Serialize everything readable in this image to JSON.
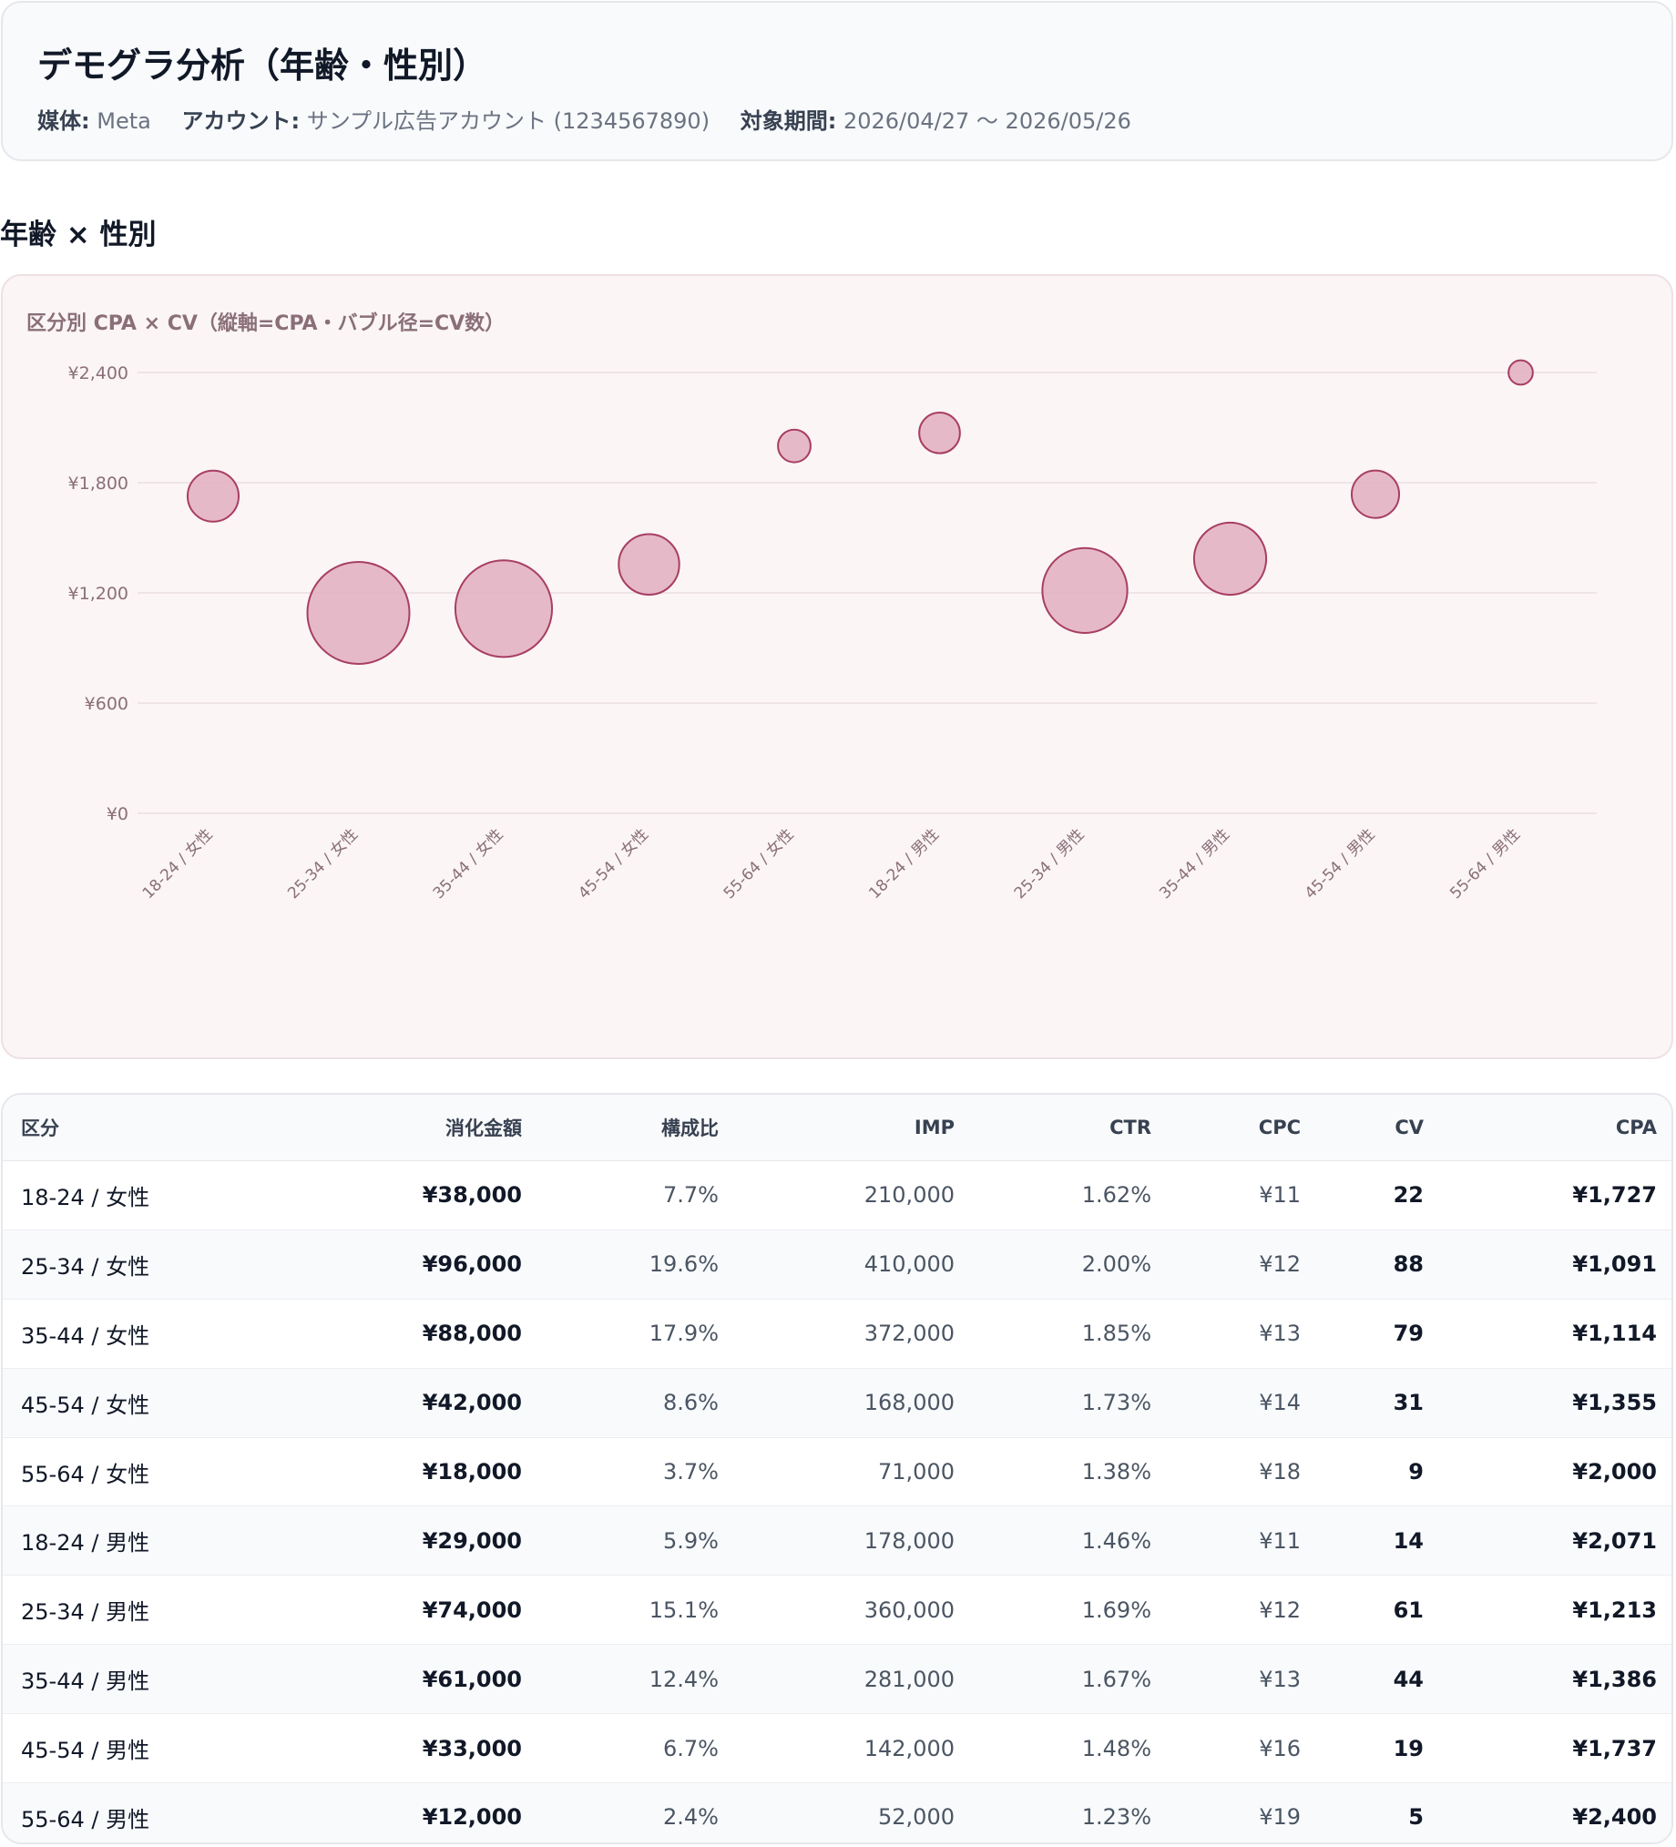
{
  "header": {
    "title": "デモグラ分析（年齢・性別）",
    "meta": [
      {
        "label": "媒体:",
        "value": "Meta"
      },
      {
        "label": "アカウント:",
        "value": "サンプル広告アカウント (1234567890)"
      },
      {
        "label": "対象期間:",
        "value": "2026/04/27 〜 2026/05/26"
      }
    ]
  },
  "section": {
    "title": "年齢 × 性別"
  },
  "chart_data": {
    "type": "scatter",
    "title": "区分別 CPA × CV（縦軸=CPA・バブル径=CV数）",
    "xlabel": "",
    "ylabel": "",
    "ylim": [
      0,
      2400
    ],
    "yticks": [
      "¥0",
      "¥600",
      "¥1,200",
      "¥1,800",
      "¥2,400"
    ],
    "ytick_values": [
      0,
      600,
      1200,
      1800,
      2400
    ],
    "grid": true,
    "categories": [
      "18-24 / 女性",
      "25-34 / 女性",
      "35-44 / 女性",
      "45-54 / 女性",
      "55-64 / 女性",
      "18-24 / 男性",
      "25-34 / 男性",
      "35-44 / 男性",
      "45-54 / 男性",
      "55-64 / 男性"
    ],
    "values": [
      1727,
      1091,
      1114,
      1355,
      2000,
      2071,
      1213,
      1386,
      1737,
      2400
    ],
    "bubble_size": [
      22,
      88,
      79,
      31,
      9,
      14,
      61,
      44,
      19,
      5
    ],
    "colors": {
      "fill": "#e2aec0",
      "stroke": "#a83e63"
    }
  },
  "table": {
    "headers": [
      "区分",
      "消化金額",
      "構成比",
      "IMP",
      "CTR",
      "CPC",
      "CV",
      "CPA"
    ],
    "rows": [
      {
        "segment": "18-24 / 女性",
        "spend": "¥38,000",
        "share": "7.7%",
        "imp": "210,000",
        "ctr": "1.62%",
        "cpc": "¥11",
        "cv": "22",
        "cpa": "¥1,727"
      },
      {
        "segment": "25-34 / 女性",
        "spend": "¥96,000",
        "share": "19.6%",
        "imp": "410,000",
        "ctr": "2.00%",
        "cpc": "¥12",
        "cv": "88",
        "cpa": "¥1,091"
      },
      {
        "segment": "35-44 / 女性",
        "spend": "¥88,000",
        "share": "17.9%",
        "imp": "372,000",
        "ctr": "1.85%",
        "cpc": "¥13",
        "cv": "79",
        "cpa": "¥1,114"
      },
      {
        "segment": "45-54 / 女性",
        "spend": "¥42,000",
        "share": "8.6%",
        "imp": "168,000",
        "ctr": "1.73%",
        "cpc": "¥14",
        "cv": "31",
        "cpa": "¥1,355"
      },
      {
        "segment": "55-64 / 女性",
        "spend": "¥18,000",
        "share": "3.7%",
        "imp": "71,000",
        "ctr": "1.38%",
        "cpc": "¥18",
        "cv": "9",
        "cpa": "¥2,000"
      },
      {
        "segment": "18-24 / 男性",
        "spend": "¥29,000",
        "share": "5.9%",
        "imp": "178,000",
        "ctr": "1.46%",
        "cpc": "¥11",
        "cv": "14",
        "cpa": "¥2,071"
      },
      {
        "segment": "25-34 / 男性",
        "spend": "¥74,000",
        "share": "15.1%",
        "imp": "360,000",
        "ctr": "1.69%",
        "cpc": "¥12",
        "cv": "61",
        "cpa": "¥1,213"
      },
      {
        "segment": "35-44 / 男性",
        "spend": "¥61,000",
        "share": "12.4%",
        "imp": "281,000",
        "ctr": "1.67%",
        "cpc": "¥13",
        "cv": "44",
        "cpa": "¥1,386"
      },
      {
        "segment": "45-54 / 男性",
        "spend": "¥33,000",
        "share": "6.7%",
        "imp": "142,000",
        "ctr": "1.48%",
        "cpc": "¥16",
        "cv": "19",
        "cpa": "¥1,737"
      },
      {
        "segment": "55-64 / 男性",
        "spend": "¥12,000",
        "share": "2.4%",
        "imp": "52,000",
        "ctr": "1.23%",
        "cpc": "¥19",
        "cv": "5",
        "cpa": "¥2,400"
      }
    ]
  }
}
